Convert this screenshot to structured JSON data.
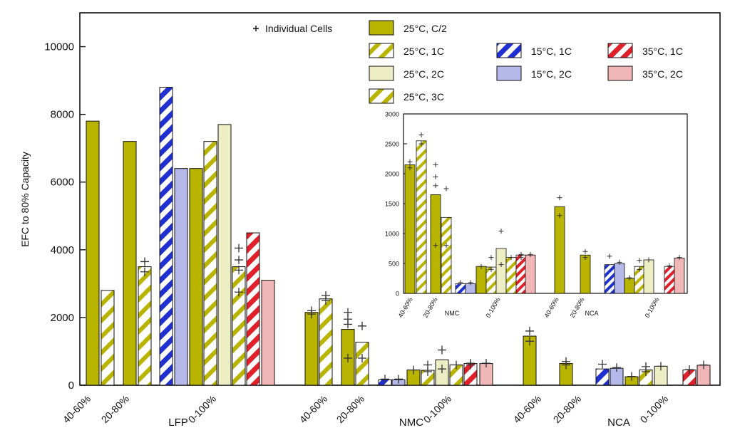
{
  "chart_data": [
    {
      "type": "bar",
      "ylabel": "EFC to 80% Capacity",
      "ylim": [
        0,
        11000
      ],
      "yticks": [
        0,
        2000,
        4000,
        6000,
        8000,
        10000
      ],
      "grid": false,
      "chemistries": [
        "LFP",
        "NMC",
        "NCA"
      ],
      "dod_windows": [
        "40-60%",
        "20-80%",
        "0-100%"
      ],
      "legend": {
        "placement": "top",
        "marker_label": "Individual Cells",
        "entries": [
          {
            "key": "25C_C2",
            "label": "25°C, C/2"
          },
          {
            "key": "25C_1C",
            "label": "25°C, 1C"
          },
          {
            "key": "25C_2C",
            "label": "25°C, 2C"
          },
          {
            "key": "25C_3C",
            "label": "25°C, 3C"
          },
          {
            "key": "15C_1C",
            "label": "15°C, 1C"
          },
          {
            "key": "15C_2C",
            "label": "15°C, 2C"
          },
          {
            "key": "35C_1C",
            "label": "35°C, 1C"
          },
          {
            "key": "35C_2C",
            "label": "35°C, 2C"
          }
        ]
      },
      "groups": [
        {
          "chemistry": "LFP",
          "window": "40-60%",
          "bars": [
            {
              "cond": "25C_C2",
              "value": 7800
            },
            {
              "cond": "25C_3C",
              "value": 2800
            }
          ]
        },
        {
          "chemistry": "LFP",
          "window": "20-80%",
          "bars": [
            {
              "cond": "25C_C2",
              "value": 7200
            },
            {
              "cond": "25C_3C",
              "value": 3500,
              "cells": [
                3650,
                3350
              ]
            }
          ]
        },
        {
          "chemistry": "LFP",
          "window": "0-100%",
          "bars": [
            {
              "cond": "15C_1C",
              "value": 8800
            },
            {
              "cond": "15C_2C",
              "value": 6400
            },
            {
              "cond": "25C_C2",
              "value": 6400
            },
            {
              "cond": "25C_1C",
              "value": 7200
            },
            {
              "cond": "25C_2C",
              "value": 7700
            },
            {
              "cond": "25C_3C",
              "value": 3500,
              "cells": [
                4050,
                3700,
                3400,
                2750
              ]
            },
            {
              "cond": "35C_1C",
              "value": 4500
            },
            {
              "cond": "35C_2C",
              "value": 3100
            }
          ]
        },
        {
          "chemistry": "NMC",
          "window": "40-60%",
          "bars": [
            {
              "cond": "25C_C2",
              "value": 2150,
              "cells": [
                2200,
                2100
              ]
            },
            {
              "cond": "25C_1C",
              "value": 2550,
              "cells": [
                2650,
                2500
              ]
            }
          ]
        },
        {
          "chemistry": "NMC",
          "window": "20-80%",
          "bars": [
            {
              "cond": "25C_C2",
              "value": 1650,
              "cells": [
                2150,
                1950,
                1800,
                800
              ]
            },
            {
              "cond": "25C_1C",
              "value": 1270,
              "cells": [
                1750,
                800
              ]
            }
          ]
        },
        {
          "chemistry": "NMC",
          "window": "0-100%",
          "bars": [
            {
              "cond": "15C_1C",
              "value": 160,
              "cells": [
                180
              ]
            },
            {
              "cond": "15C_2C",
              "value": 160,
              "cells": [
                180
              ]
            },
            {
              "cond": "25C_C2",
              "value": 450,
              "cells": [
                450
              ]
            },
            {
              "cond": "25C_1C",
              "value": 440,
              "cells": [
                600,
                400
              ]
            },
            {
              "cond": "25C_2C",
              "value": 750,
              "cells": [
                1040,
                480
              ]
            },
            {
              "cond": "25C_3C",
              "value": 600,
              "cells": [
                600
              ]
            },
            {
              "cond": "35C_1C",
              "value": 640,
              "cells": [
                650,
                600
              ]
            },
            {
              "cond": "35C_2C",
              "value": 640,
              "cells": [
                650
              ]
            }
          ]
        },
        {
          "chemistry": "NCA",
          "window": "40-60%",
          "bars": [
            {
              "cond": "25C_C2",
              "value": 1450,
              "cells": [
                1600,
                1300
              ]
            }
          ]
        },
        {
          "chemistry": "NCA",
          "window": "20-80%",
          "bars": [
            {
              "cond": "25C_C2",
              "value": 640,
              "cells": [
                700,
                600
              ]
            }
          ]
        },
        {
          "chemistry": "NCA",
          "window": "0-100%",
          "bars": [
            {
              "cond": "15C_1C",
              "value": 480,
              "cells": [
                620
              ]
            },
            {
              "cond": "15C_2C",
              "value": 500,
              "cells": [
                520
              ]
            },
            {
              "cond": "25C_C2",
              "value": 250,
              "cells": [
                260
              ]
            },
            {
              "cond": "25C_1C",
              "value": 450,
              "cells": [
                550,
                400
              ]
            },
            {
              "cond": "25C_2C",
              "value": 560,
              "cells": [
                560
              ]
            },
            {
              "cond": "35C_1C",
              "value": 450,
              "cells": [
                460
              ]
            },
            {
              "cond": "35C_2C",
              "value": 590,
              "cells": [
                600
              ]
            }
          ]
        }
      ]
    },
    {
      "type": "bar",
      "role": "inset",
      "ylim": [
        0,
        3000
      ],
      "yticks": [
        0,
        500,
        1000,
        1500,
        2000,
        2500,
        3000
      ],
      "grid": false,
      "chemistries": [
        "NMC",
        "NCA"
      ],
      "dod_windows": [
        "40-60%",
        "20-80%",
        "0-100%"
      ],
      "note": "zoomed view of the NMC and NCA groups of the main chart"
    }
  ],
  "colors": {
    "olive": "#b8b400",
    "olive_light": "#eeeec4",
    "blue": "#1f2fd0",
    "blue_light": "#b5b9ea",
    "red": "#e0202a",
    "red_light": "#f1b6b6"
  }
}
